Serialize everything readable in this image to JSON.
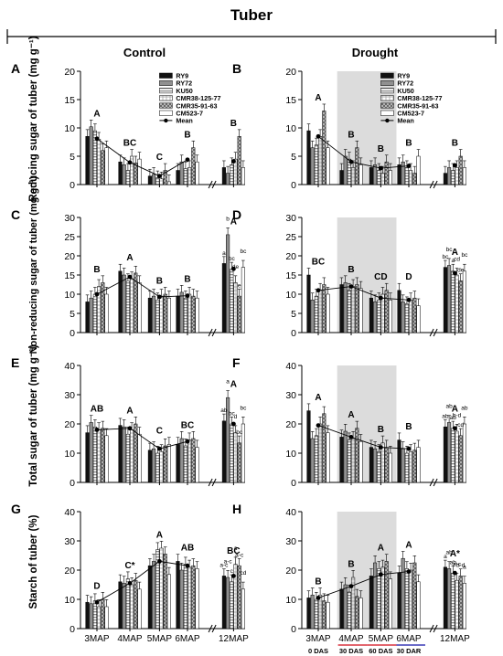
{
  "figure": {
    "title": "Tuber",
    "col_headers": [
      "Control",
      "Drought"
    ],
    "ylabels": [
      "Reducing sugar of tuber (mg g⁻¹)",
      "Non-reducing sugar of tuber (mg g⁻¹)",
      "Total sugar of tuber (mg g⁻¹)",
      "Starch of tuber (%)"
    ],
    "x_ticks": [
      "3MAP",
      "4MAP",
      "5MAP",
      "6MAP",
      "12MAP"
    ],
    "drought_periods": [
      "0 DAS",
      "30 DAS",
      "60 DAS",
      "30 DAR"
    ],
    "period_line_colors": [
      "#d9343e",
      "#d9343e",
      "#3a3ab5"
    ],
    "legend": [
      "RY9",
      "RY72",
      "KU50",
      "CMR38-125-77",
      "CMR35-91-63",
      "CM523-7",
      "Mean"
    ],
    "shade_color": "#dcdcdc"
  },
  "chart_data": [
    {
      "panel": "A",
      "type": "bar",
      "ylim": [
        0,
        20
      ],
      "yticks": [
        0,
        5,
        10,
        15,
        20
      ],
      "categories": [
        "3MAP",
        "4MAP",
        "5MAP",
        "6MAP",
        "12MAP"
      ],
      "series": [
        {
          "name": "RY9",
          "values": [
            8.5,
            4.0,
            1.5,
            2.5,
            3.0
          ]
        },
        {
          "name": "RY72",
          "values": [
            10.2,
            3.5,
            1.8,
            4.0,
            2.0
          ]
        },
        {
          "name": "KU50",
          "values": [
            9.5,
            2.5,
            1.2,
            2.8,
            3.5
          ]
        },
        {
          "name": "CMR38-125-77",
          "values": [
            8.0,
            5.0,
            1.0,
            3.0,
            4.5
          ]
        },
        {
          "name": "CMR35-91-63",
          "values": [
            6.0,
            3.8,
            2.5,
            6.5,
            8.5
          ]
        },
        {
          "name": "CM523-7",
          "values": [
            6.5,
            4.5,
            0.5,
            4.0,
            3.0
          ]
        }
      ],
      "mean": [
        8.1,
        3.9,
        1.5,
        4.4,
        4.1
      ],
      "letters": [
        "A",
        "BC",
        "C",
        "B",
        "B"
      ],
      "shaded": false
    },
    {
      "panel": "B",
      "type": "bar",
      "ylim": [
        0,
        20
      ],
      "yticks": [
        0,
        5,
        10,
        15,
        20
      ],
      "categories": [
        "3MAP",
        "4MAP",
        "5MAP",
        "6MAP",
        "12MAP"
      ],
      "series": [
        {
          "name": "RY9",
          "values": [
            9.5,
            2.5,
            3.0,
            3.5,
            2.0
          ]
        },
        {
          "name": "RY72",
          "values": [
            6.5,
            5.0,
            3.5,
            4.0,
            3.0
          ]
        },
        {
          "name": "KU50",
          "values": [
            7.0,
            4.5,
            2.5,
            3.0,
            2.5
          ]
        },
        {
          "name": "CMR38-125-77",
          "values": [
            8.5,
            3.0,
            2.0,
            2.5,
            3.0
          ]
        },
        {
          "name": "CMR35-91-63",
          "values": [
            13.0,
            6.5,
            4.0,
            2.0,
            5.0
          ]
        },
        {
          "name": "CM523-7",
          "values": [
            6.5,
            3.5,
            2.5,
            5.0,
            3.0
          ]
        }
      ],
      "mean": [
        8.5,
        4.0,
        2.9,
        3.3,
        3.4
      ],
      "letters": [
        "A",
        "B",
        "B",
        "B",
        "B"
      ],
      "shaded": true
    },
    {
      "panel": "C",
      "type": "bar",
      "ylim": [
        0,
        30
      ],
      "yticks": [
        0,
        5,
        10,
        15,
        20,
        25,
        30
      ],
      "categories": [
        "3MAP",
        "4MAP",
        "5MAP",
        "6MAP",
        "12MAP"
      ],
      "series": [
        {
          "name": "RY9",
          "values": [
            8.0,
            16.0,
            9.0,
            9.5,
            18.0
          ]
        },
        {
          "name": "RY72",
          "values": [
            9.0,
            15.0,
            9.5,
            10.5,
            25.5
          ]
        },
        {
          "name": "KU50",
          "values": [
            10.0,
            13.5,
            8.5,
            9.0,
            16.5
          ]
        },
        {
          "name": "CMR38-125-77",
          "values": [
            12.0,
            14.0,
            9.5,
            10.0,
            13.0
          ]
        },
        {
          "name": "CMR35-91-63",
          "values": [
            13.0,
            15.5,
            10.0,
            9.5,
            9.5
          ]
        },
        {
          "name": "CM523-7",
          "values": [
            10.0,
            13.0,
            9.0,
            9.0,
            17.0
          ]
        }
      ],
      "mean": [
        10.0,
        14.5,
        9.3,
        9.6,
        16.6
      ],
      "letters": [
        "B",
        "A",
        "B",
        "B",
        "A"
      ],
      "sub_letters": [
        "a",
        "b",
        "bc",
        "de",
        "e",
        "bc"
      ],
      "shaded": false
    },
    {
      "panel": "D",
      "type": "bar",
      "ylim": [
        0,
        30
      ],
      "yticks": [
        0,
        5,
        10,
        15,
        20,
        25,
        30
      ],
      "categories": [
        "3MAP",
        "4MAP",
        "5MAP",
        "6MAP",
        "12MAP"
      ],
      "series": [
        {
          "name": "RY9",
          "values": [
            15.0,
            12.5,
            9.0,
            11.0,
            17.0
          ]
        },
        {
          "name": "RY72",
          "values": [
            8.5,
            13.0,
            8.0,
            8.0,
            17.5
          ]
        },
        {
          "name": "KU50",
          "values": [
            9.5,
            11.0,
            8.5,
            7.5,
            16.0
          ]
        },
        {
          "name": "CMR38-125-77",
          "values": [
            11.0,
            12.0,
            10.0,
            8.5,
            15.0
          ]
        },
        {
          "name": "CMR35-91-63",
          "values": [
            12.5,
            12.5,
            11.0,
            9.0,
            13.5
          ]
        },
        {
          "name": "CM523-7",
          "values": [
            10.0,
            11.5,
            8.5,
            7.0,
            16.0
          ]
        }
      ],
      "mean": [
        11.0,
        12.0,
        9.0,
        8.5,
        15.5
      ],
      "letters": [
        "BC",
        "B",
        "CD",
        "D",
        "A"
      ],
      "sub_letters": [
        "bc",
        "bc",
        "a",
        "cd",
        "de",
        "bc"
      ],
      "shaded": true
    },
    {
      "panel": "E",
      "type": "bar",
      "ylim": [
        0,
        40
      ],
      "yticks": [
        0,
        10,
        20,
        30,
        40
      ],
      "categories": [
        "3MAP",
        "4MAP",
        "5MAP",
        "6MAP",
        "12MAP"
      ],
      "series": [
        {
          "name": "RY9",
          "values": [
            17.0,
            19.5,
            11.0,
            13.0,
            21.0
          ]
        },
        {
          "name": "RY72",
          "values": [
            20.5,
            19.0,
            11.5,
            15.0,
            29.0
          ]
        },
        {
          "name": "KU50",
          "values": [
            19.0,
            16.5,
            10.0,
            12.5,
            20.0
          ]
        },
        {
          "name": "CMR38-125-77",
          "values": [
            18.0,
            18.0,
            10.5,
            14.5,
            17.0
          ]
        },
        {
          "name": "CMR35-91-63",
          "values": [
            18.5,
            20.0,
            12.5,
            15.0,
            13.5
          ]
        },
        {
          "name": "CM523-7",
          "values": [
            16.0,
            16.5,
            13.0,
            12.0,
            20.0
          ]
        }
      ],
      "mean": [
        18.0,
        18.5,
        11.5,
        14.0,
        20.0
      ],
      "letters": [
        "AB",
        "A",
        "C",
        "BC",
        "A"
      ],
      "sub_letters": [
        "ab",
        "a",
        "bc",
        "d",
        "bc",
        "bc"
      ],
      "shaded": false
    },
    {
      "panel": "F",
      "type": "bar",
      "ylim": [
        0,
        40
      ],
      "yticks": [
        0,
        10,
        20,
        30,
        40
      ],
      "categories": [
        "3MAP",
        "4MAP",
        "5MAP",
        "6MAP",
        "12MAP"
      ],
      "series": [
        {
          "name": "RY9",
          "values": [
            24.5,
            15.5,
            12.0,
            14.5,
            19.0
          ]
        },
        {
          "name": "RY72",
          "values": [
            15.0,
            17.5,
            11.5,
            11.5,
            20.5
          ]
        },
        {
          "name": "KU50",
          "values": [
            16.0,
            14.5,
            10.5,
            10.0,
            18.5
          ]
        },
        {
          "name": "CMR38-125-77",
          "values": [
            20.0,
            15.0,
            13.5,
            10.5,
            17.5
          ]
        },
        {
          "name": "CMR35-91-63",
          "values": [
            23.5,
            18.5,
            12.0,
            11.0,
            16.0
          ]
        },
        {
          "name": "CM523-7",
          "values": [
            17.0,
            14.0,
            10.0,
            12.0,
            20.0
          ]
        }
      ],
      "mean": [
        19.5,
        15.5,
        12.0,
        11.5,
        18.5
      ],
      "letters": [
        "A",
        "A",
        "B",
        "B",
        "A"
      ],
      "sub_letters": [
        "ab",
        "ab",
        "ab",
        "b-d",
        "cd",
        "ab"
      ],
      "shaded": true
    },
    {
      "panel": "G",
      "type": "bar",
      "ylim": [
        0,
        40
      ],
      "yticks": [
        0,
        10,
        20,
        30,
        40
      ],
      "categories": [
        "3MAP",
        "4MAP",
        "5MAP",
        "6MAP",
        "12MAP"
      ],
      "series": [
        {
          "name": "RY9",
          "values": [
            9.0,
            16.0,
            21.5,
            23.0,
            18.0
          ]
        },
        {
          "name": "RY72",
          "values": [
            8.5,
            15.5,
            23.0,
            20.0,
            17.5
          ]
        },
        {
          "name": "KU50",
          "values": [
            9.5,
            17.0,
            27.0,
            22.0,
            16.0
          ]
        },
        {
          "name": "CMR38-125-77",
          "values": [
            7.5,
            15.0,
            27.5,
            21.0,
            22.0
          ]
        },
        {
          "name": "CMR35-91-63",
          "values": [
            10.0,
            16.5,
            25.5,
            21.5,
            21.5
          ]
        },
        {
          "name": "CM523-7",
          "values": [
            7.5,
            13.5,
            18.5,
            20.5,
            13.5
          ]
        }
      ],
      "mean": [
        9.0,
        15.5,
        23.0,
        21.5,
        18.0
      ],
      "letters": [
        "D",
        "C*",
        "A",
        "AB",
        "BC"
      ],
      "sub_letters": [
        "a-c",
        "a-c",
        "c",
        "a",
        "a-c",
        "cd"
      ],
      "shaded": false
    },
    {
      "panel": "H",
      "type": "bar",
      "ylim": [
        0,
        40
      ],
      "yticks": [
        0,
        10,
        20,
        30,
        40
      ],
      "categories": [
        "3MAP",
        "4MAP",
        "5MAP",
        "6MAP",
        "12MAP"
      ],
      "series": [
        {
          "name": "RY9",
          "values": [
            10.5,
            13.5,
            18.0,
            19.0,
            21.0
          ]
        },
        {
          "name": "RY72",
          "values": [
            11.5,
            15.0,
            22.5,
            24.0,
            20.5
          ]
        },
        {
          "name": "KU50",
          "values": [
            10.0,
            12.5,
            20.5,
            20.5,
            19.0
          ]
        },
        {
          "name": "CMR38-125-77",
          "values": [
            11.5,
            17.5,
            21.0,
            20.0,
            16.5
          ]
        },
        {
          "name": "CMR35-91-63",
          "values": [
            9.5,
            11.0,
            23.0,
            22.5,
            18.0
          ]
        },
        {
          "name": "CM523-7",
          "values": [
            9.0,
            10.5,
            17.0,
            16.0,
            15.5
          ]
        }
      ],
      "mean": [
        10.5,
        14.5,
        18.5,
        19.5,
        19.0
      ],
      "letters": [
        "B",
        "B",
        "A",
        "A",
        "A*"
      ],
      "sub_letters": [
        "a",
        "ab",
        "ab",
        "a-c",
        "b-d",
        "a"
      ],
      "shaded": true
    }
  ]
}
